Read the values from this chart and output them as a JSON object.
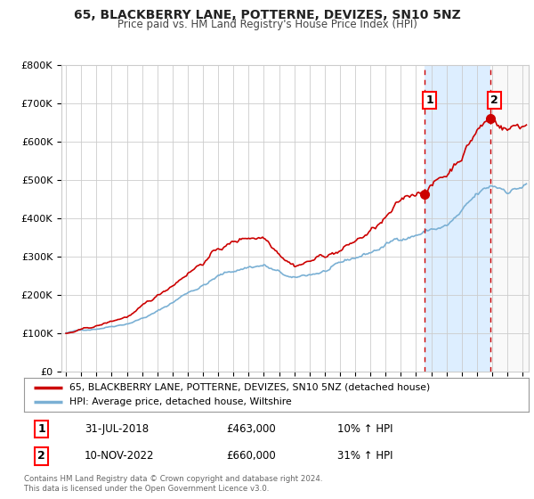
{
  "title": "65, BLACKBERRY LANE, POTTERNE, DEVIZES, SN10 5NZ",
  "subtitle": "Price paid vs. HM Land Registry's House Price Index (HPI)",
  "red_label": "65, BLACKBERRY LANE, POTTERNE, DEVIZES, SN10 5NZ (detached house)",
  "blue_label": "HPI: Average price, detached house, Wiltshire",
  "annotation1": {
    "num": "1",
    "date": "31-JUL-2018",
    "price": "£463,000",
    "hpi": "10% ↑ HPI"
  },
  "annotation2": {
    "num": "2",
    "date": "10-NOV-2022",
    "price": "£660,000",
    "hpi": "31% ↑ HPI"
  },
  "footnote": "Contains HM Land Registry data © Crown copyright and database right 2024.\nThis data is licensed under the Open Government Licence v3.0.",
  "t_start": 1995.0,
  "t_end": 2025.25,
  "vline1_x": 2018.58,
  "vline2_x": 2022.87,
  "dot1_x": 2018.58,
  "dot1_y": 463000,
  "dot2_x": 2022.87,
  "dot2_y": 660000,
  "ylim": [
    0,
    800000
  ],
  "xlim_left": 1994.7,
  "xlim_right": 2025.4,
  "yticks": [
    0,
    100000,
    200000,
    300000,
    400000,
    500000,
    600000,
    700000,
    800000
  ],
  "ytick_labels": [
    "£0",
    "£100K",
    "£200K",
    "£300K",
    "£400K",
    "£500K",
    "£600K",
    "£700K",
    "£800K"
  ],
  "xtick_years": [
    1995,
    1996,
    1997,
    1998,
    1999,
    2000,
    2001,
    2002,
    2003,
    2004,
    2005,
    2006,
    2007,
    2008,
    2009,
    2010,
    2011,
    2012,
    2013,
    2014,
    2015,
    2016,
    2017,
    2018,
    2019,
    2020,
    2021,
    2022,
    2023,
    2024,
    2025
  ],
  "shade_color": "#ddeeff",
  "red_color": "#cc0000",
  "blue_color": "#7ab0d4",
  "vline_color": "#cc0000",
  "grid_color": "#cccccc",
  "bg_color": "#ffffff",
  "outside_shade": "#eeeeee"
}
